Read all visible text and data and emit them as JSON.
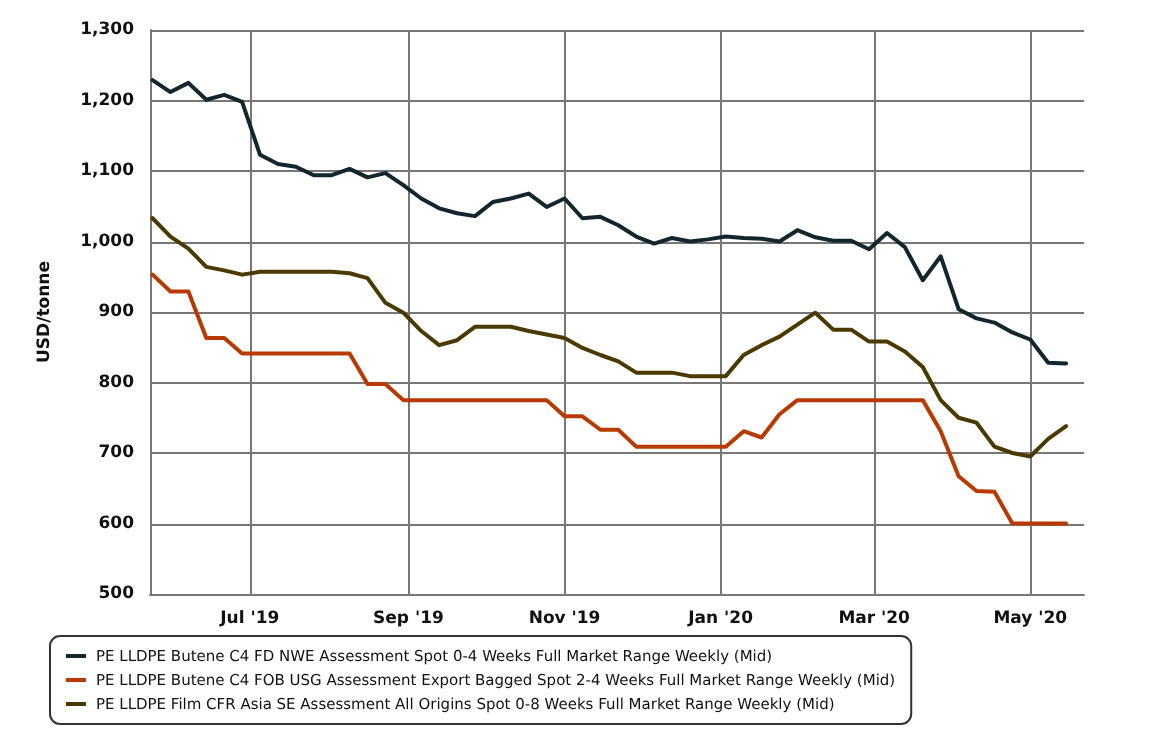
{
  "chart_data": {
    "type": "line",
    "ylabel": "USD/tonne",
    "x": [
      "2019-05-24",
      "2019-05-31",
      "2019-06-07",
      "2019-06-14",
      "2019-06-21",
      "2019-06-28",
      "2019-07-05",
      "2019-07-12",
      "2019-07-19",
      "2019-07-26",
      "2019-08-02",
      "2019-08-09",
      "2019-08-16",
      "2019-08-23",
      "2019-08-30",
      "2019-09-06",
      "2019-09-13",
      "2019-09-20",
      "2019-09-27",
      "2019-10-04",
      "2019-10-11",
      "2019-10-18",
      "2019-10-25",
      "2019-11-01",
      "2019-11-08",
      "2019-11-15",
      "2019-11-22",
      "2019-11-29",
      "2019-12-06",
      "2019-12-13",
      "2019-12-20",
      "2019-12-27",
      "2020-01-03",
      "2020-01-10",
      "2020-01-17",
      "2020-01-24",
      "2020-01-31",
      "2020-02-07",
      "2020-02-14",
      "2020-02-21",
      "2020-02-28",
      "2020-03-06",
      "2020-03-13",
      "2020-03-20",
      "2020-03-27",
      "2020-04-03",
      "2020-04-10",
      "2020-04-17",
      "2020-04-24",
      "2020-05-01",
      "2020-05-08",
      "2020-05-15"
    ],
    "series": [
      {
        "name": "PE LLDPE Butene C4 FD NWE Assessment Spot 0-4 Weeks Full Market Range Weekly (Mid)",
        "color": "#13262e",
        "values": [
          1229,
          1212,
          1225,
          1201,
          1208,
          1198,
          1123,
          1110,
          1106,
          1094,
          1094,
          1103,
          1091,
          1097,
          1080,
          1061,
          1047,
          1040,
          1036,
          1056,
          1061,
          1068,
          1049,
          1061,
          1033,
          1035,
          1023,
          1007,
          997,
          1005,
          1000,
          1003,
          1007,
          1005,
          1004,
          1000,
          1016,
          1006,
          1001,
          1001,
          989,
          1012,
          992,
          945,
          979,
          904,
          891,
          885,
          871,
          861,
          828,
          827
        ]
      },
      {
        "name": "PE LLDPE Butene C4 FOB USG Assessment Export Bagged Spot 2-4 Weeks Full Market Range Weekly (Mid)",
        "color": "#b83a00",
        "values": [
          953,
          929,
          929,
          863,
          863,
          841,
          841,
          841,
          841,
          841,
          841,
          841,
          798,
          798,
          775,
          775,
          775,
          775,
          775,
          775,
          775,
          775,
          775,
          752,
          752,
          733,
          733,
          709,
          709,
          709,
          709,
          709,
          709,
          731,
          722,
          755,
          775,
          775,
          775,
          775,
          775,
          775,
          775,
          775,
          731,
          667,
          646,
          645,
          600,
          600,
          600,
          600
        ]
      },
      {
        "name": "PE LLDPE Film CFR Asia SE Assessment All Origins Spot 0-8 Weeks Full Market Range Weekly (Mid)",
        "color": "#4a3a00",
        "values": [
          1033,
          1007,
          990,
          964,
          959,
          953,
          957,
          957,
          957,
          957,
          957,
          955,
          948,
          913,
          899,
          873,
          853,
          860,
          879,
          879,
          879,
          873,
          868,
          863,
          849,
          839,
          830,
          814,
          814,
          814,
          809,
          809,
          809,
          839,
          853,
          865,
          882,
          899,
          875,
          875,
          858,
          858,
          844,
          822,
          775,
          750,
          743,
          709,
          700,
          695,
          720,
          738
        ]
      }
    ],
    "xlim": [
      "2019-05-23",
      "2020-05-22"
    ],
    "xticks": [
      {
        "value": "2019-07-01",
        "label": "Jul '19"
      },
      {
        "value": "2019-09-01",
        "label": "Sep '19"
      },
      {
        "value": "2019-11-01",
        "label": "Nov '19"
      },
      {
        "value": "2020-01-01",
        "label": "Jan '20"
      },
      {
        "value": "2020-03-01",
        "label": "Mar '20"
      },
      {
        "value": "2020-05-01",
        "label": "May '20"
      }
    ],
    "ylim": [
      500,
      1300
    ],
    "yticks": [
      500,
      600,
      700,
      800,
      900,
      {
        "value": 1000,
        "label": "1,000"
      },
      {
        "value": 1100,
        "label": "1,100"
      },
      {
        "value": 1200,
        "label": "1,200"
      },
      {
        "value": 1300,
        "label": "1,300"
      }
    ],
    "grid": true,
    "legend": "bottom",
    "marker": "none",
    "line_style": "solid"
  }
}
